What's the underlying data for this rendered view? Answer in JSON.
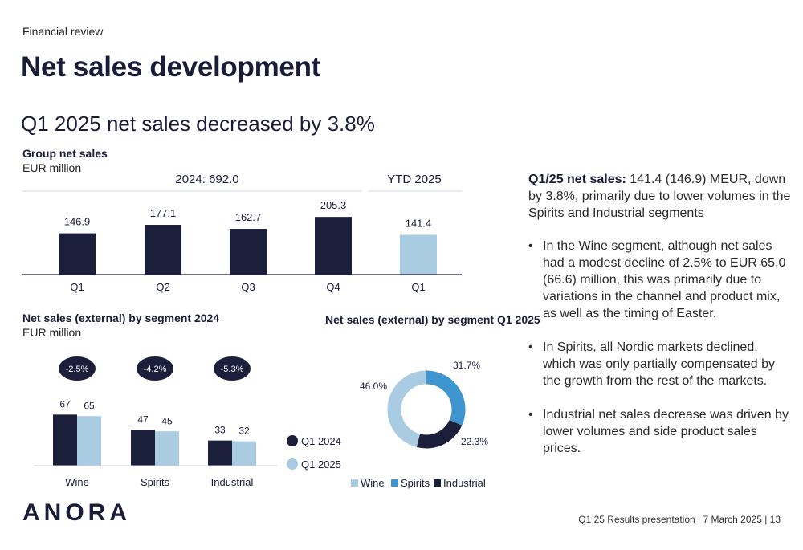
{
  "header": {
    "section": "Financial review",
    "title": "Net sales development",
    "subtitle": "Q1 2025 net sales decreased by 3.8%"
  },
  "colors": {
    "navy": "#1c1f3a",
    "light_blue": "#a9cce3",
    "mid_blue": "#3f95d0"
  },
  "chart_data": [
    {
      "type": "bar",
      "title": "Group net sales",
      "subtitle": "EUR million",
      "group_labels": [
        "2024: 692.0",
        "YTD 2025"
      ],
      "categories": [
        "Q1",
        "Q2",
        "Q3",
        "Q4",
        "Q1"
      ],
      "values": [
        146.9,
        177.1,
        162.7,
        205.3,
        141.4
      ],
      "value_labels": [
        "146.9",
        "177.1",
        "162.7",
        "205.3",
        "141.4"
      ],
      "bar_colors": [
        "#1c1f3a",
        "#1c1f3a",
        "#1c1f3a",
        "#1c1f3a",
        "#a9cce3"
      ]
    },
    {
      "type": "bar",
      "title": "Net sales (external) by segment 2024",
      "subtitle": "EUR million",
      "categories": [
        "Wine",
        "Spirits",
        "Industrial"
      ],
      "series": [
        {
          "name": "Q1 2024",
          "values": [
            67,
            47,
            33
          ],
          "color": "#1c1f3a"
        },
        {
          "name": "Q1 2025",
          "values": [
            65,
            45,
            32
          ],
          "color": "#a9cce3"
        }
      ],
      "change_labels": [
        "-2.5%",
        "-4.2%",
        "-5.3%"
      ]
    },
    {
      "type": "pie",
      "title": "Net sales (external) by segment Q1 2025",
      "labels": [
        "Wine",
        "Spirits",
        "Industrial"
      ],
      "values": [
        46.0,
        31.7,
        22.3
      ],
      "value_labels": [
        "46.0%",
        "31.7%",
        "22.3%"
      ],
      "colors": [
        "#a9cce3",
        "#3f95d0",
        "#1c1f3a"
      ]
    }
  ],
  "commentary": {
    "lead_bold": "Q1/25 net sales:",
    "lead_text": " 141.4 (146.9) MEUR, down by 3.8%, primarily due to lower volumes in the Spirits and Industrial segments",
    "bullets": [
      "In the Wine segment, although net sales had a modest decline of 2.5% to EUR 65.0 (66.6) million, this was primarily due to variations in the channel and product mix, as well as the timing of Easter.",
      "In Spirits, all Nordic markets declined, which was only partially compensated by the growth from the rest of the markets.",
      "Industrial net sales decrease was driven by lower volumes and side product sales prices."
    ]
  },
  "brand": {
    "logo": "ANORA"
  },
  "footer": {
    "text": "Q1 25 Results presentation  |  7 March 2025  |  13"
  }
}
